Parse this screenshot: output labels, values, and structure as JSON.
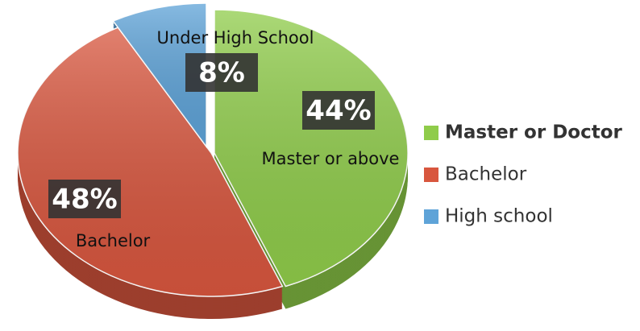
{
  "chart_data": {
    "type": "pie",
    "categories": [
      "Master or Doctor",
      "Bachelor",
      "High school"
    ],
    "values": [
      44,
      48,
      8
    ],
    "value_labels": [
      "44%",
      "48%",
      "8%"
    ],
    "slice_labels": [
      "Master or above",
      "Bachelor",
      "Under High School"
    ],
    "colors": [
      "#8fcc4a",
      "#d8563e",
      "#5ea3d8"
    ],
    "legend": "right"
  }
}
